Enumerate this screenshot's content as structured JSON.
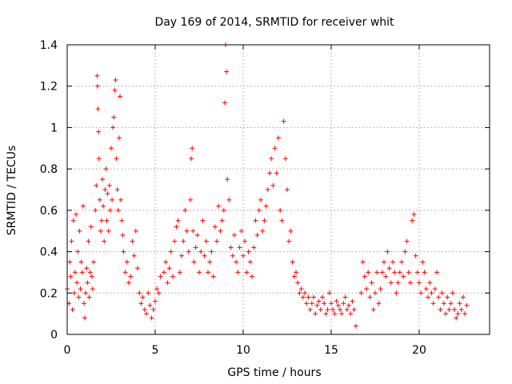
{
  "chart_data": {
    "type": "scatter",
    "title": "Day 169 of 2014, SRMTID for receiver whit",
    "xlabel": "GPS time / hours",
    "ylabel": "SRMTID / TECUs",
    "xlim": [
      0,
      24
    ],
    "ylim": [
      0,
      1.4
    ],
    "x_ticks": [
      0,
      5,
      10,
      15,
      20
    ],
    "x_tick_labels": [
      "0",
      "5",
      "10",
      "15",
      "20"
    ],
    "y_ticks": [
      0,
      0.2,
      0.4,
      0.6,
      0.8,
      1.0,
      1.2,
      1.4
    ],
    "y_tick_labels": [
      "0",
      "0.2",
      "0.4",
      "0.6",
      "0.8",
      "1",
      "1.2",
      "1.4"
    ],
    "grid": true,
    "marker": "+",
    "color": "#ff0000",
    "series": [
      {
        "name": "SRMTID",
        "points": [
          [
            0.0,
            0.22
          ],
          [
            0.1,
            0.15
          ],
          [
            0.15,
            0.35
          ],
          [
            0.2,
            0.28
          ],
          [
            0.25,
            0.45
          ],
          [
            0.3,
            0.12
          ],
          [
            0.35,
            0.55
          ],
          [
            0.4,
            0.2
          ],
          [
            0.45,
            0.3
          ],
          [
            0.5,
            0.58
          ],
          [
            0.55,
            0.25
          ],
          [
            0.6,
            0.4
          ],
          [
            0.65,
            0.18
          ],
          [
            0.7,
            0.5
          ],
          [
            0.75,
            0.22
          ],
          [
            0.8,
            0.35
          ],
          [
            0.85,
            0.3
          ],
          [
            0.9,
            0.62
          ],
          [
            0.95,
            0.15
          ],
          [
            1.0,
            0.08
          ],
          [
            1.05,
            0.2
          ],
          [
            1.1,
            0.32
          ],
          [
            1.15,
            0.25
          ],
          [
            1.2,
            0.45
          ],
          [
            1.25,
            0.18
          ],
          [
            1.3,
            0.3
          ],
          [
            1.35,
            0.52
          ],
          [
            1.4,
            0.28
          ],
          [
            1.45,
            0.22
          ],
          [
            1.5,
            0.35
          ],
          [
            1.6,
            0.6
          ],
          [
            1.65,
            0.72
          ],
          [
            1.7,
            1.25
          ],
          [
            1.72,
            1.2
          ],
          [
            1.75,
            1.09
          ],
          [
            1.78,
            0.98
          ],
          [
            1.8,
            0.85
          ],
          [
            1.85,
            0.65
          ],
          [
            1.9,
            0.5
          ],
          [
            1.95,
            0.55
          ],
          [
            2.0,
            0.75
          ],
          [
            2.05,
            0.62
          ],
          [
            2.1,
            0.45
          ],
          [
            2.15,
            0.7
          ],
          [
            2.2,
            0.8
          ],
          [
            2.25,
            0.55
          ],
          [
            2.3,
            0.68
          ],
          [
            2.35,
            0.5
          ],
          [
            2.4,
            0.72
          ],
          [
            2.45,
            0.6
          ],
          [
            2.5,
            0.9
          ],
          [
            2.55,
            0.65
          ],
          [
            2.6,
            1.0
          ],
          [
            2.65,
            1.05
          ],
          [
            2.7,
            1.18
          ],
          [
            2.75,
            1.23
          ],
          [
            2.8,
            0.85
          ],
          [
            2.85,
            0.7
          ],
          [
            2.9,
            0.6
          ],
          [
            2.95,
            0.95
          ],
          [
            3.0,
            1.15
          ],
          [
            3.05,
            0.65
          ],
          [
            3.1,
            0.55
          ],
          [
            3.15,
            0.48
          ],
          [
            3.2,
            0.4
          ],
          [
            3.3,
            0.3
          ],
          [
            3.4,
            0.35
          ],
          [
            3.5,
            0.25
          ],
          [
            3.6,
            0.28
          ],
          [
            3.7,
            0.45
          ],
          [
            3.8,
            0.38
          ],
          [
            3.9,
            0.5
          ],
          [
            4.0,
            0.32
          ],
          [
            4.1,
            0.2
          ],
          [
            4.2,
            0.15
          ],
          [
            4.3,
            0.18
          ],
          [
            4.4,
            0.12
          ],
          [
            4.5,
            0.1
          ],
          [
            4.6,
            0.2
          ],
          [
            4.7,
            0.14
          ],
          [
            4.8,
            0.08
          ],
          [
            4.9,
            0.12
          ],
          [
            5.0,
            0.16
          ],
          [
            5.1,
            0.22
          ],
          [
            5.2,
            0.2
          ],
          [
            5.3,
            0.28
          ],
          [
            5.5,
            0.3
          ],
          [
            5.6,
            0.35
          ],
          [
            5.7,
            0.25
          ],
          [
            5.8,
            0.32
          ],
          [
            5.9,
            0.4
          ],
          [
            6.0,
            0.28
          ],
          [
            6.1,
            0.45
          ],
          [
            6.2,
            0.52
          ],
          [
            6.3,
            0.55
          ],
          [
            6.4,
            0.3
          ],
          [
            6.5,
            0.38
          ],
          [
            6.6,
            0.45
          ],
          [
            6.7,
            0.6
          ],
          [
            6.8,
            0.5
          ],
          [
            6.9,
            0.4
          ],
          [
            7.0,
            0.65
          ],
          [
            7.05,
            0.85
          ],
          [
            7.1,
            0.9
          ],
          [
            7.15,
            0.5
          ],
          [
            7.2,
            0.35
          ],
          [
            7.3,
            0.42
          ],
          [
            7.4,
            0.48
          ],
          [
            7.5,
            0.3
          ],
          [
            7.6,
            0.4
          ],
          [
            7.7,
            0.55
          ],
          [
            7.8,
            0.38
          ],
          [
            7.9,
            0.45
          ],
          [
            8.0,
            0.3
          ],
          [
            8.1,
            0.35
          ],
          [
            8.2,
            0.4
          ],
          [
            8.3,
            0.28
          ],
          [
            8.4,
            0.52
          ],
          [
            8.5,
            0.45
          ],
          [
            8.6,
            0.62
          ],
          [
            8.7,
            0.5
          ],
          [
            8.8,
            0.55
          ],
          [
            8.9,
            0.6
          ],
          [
            8.95,
            1.12
          ],
          [
            9.0,
            1.4
          ],
          [
            9.05,
            1.27
          ],
          [
            9.1,
            0.75
          ],
          [
            9.2,
            0.65
          ],
          [
            9.3,
            0.42
          ],
          [
            9.4,
            0.38
          ],
          [
            9.5,
            0.48
          ],
          [
            9.6,
            0.35
          ],
          [
            9.7,
            0.3
          ],
          [
            9.8,
            0.42
          ],
          [
            9.9,
            0.5
          ],
          [
            10.0,
            0.38
          ],
          [
            10.1,
            0.45
          ],
          [
            10.2,
            0.3
          ],
          [
            10.3,
            0.4
          ],
          [
            10.4,
            0.35
          ],
          [
            10.5,
            0.28
          ],
          [
            10.6,
            0.42
          ],
          [
            10.7,
            0.55
          ],
          [
            10.8,
            0.48
          ],
          [
            10.9,
            0.6
          ],
          [
            11.0,
            0.65
          ],
          [
            11.1,
            0.5
          ],
          [
            11.2,
            0.55
          ],
          [
            11.3,
            0.62
          ],
          [
            11.4,
            0.7
          ],
          [
            11.5,
            0.78
          ],
          [
            11.6,
            0.85
          ],
          [
            11.7,
            0.72
          ],
          [
            11.8,
            0.9
          ],
          [
            11.9,
            0.78
          ],
          [
            12.0,
            0.95
          ],
          [
            12.1,
            0.6
          ],
          [
            12.2,
            0.55
          ],
          [
            12.3,
            1.03
          ],
          [
            12.4,
            0.85
          ],
          [
            12.5,
            0.7
          ],
          [
            12.6,
            0.45
          ],
          [
            12.7,
            0.5
          ],
          [
            12.8,
            0.35
          ],
          [
            12.9,
            0.28
          ],
          [
            13.0,
            0.3
          ],
          [
            13.1,
            0.25
          ],
          [
            13.2,
            0.2
          ],
          [
            13.3,
            0.22
          ],
          [
            13.4,
            0.18
          ],
          [
            13.5,
            0.2
          ],
          [
            13.6,
            0.15
          ],
          [
            13.7,
            0.18
          ],
          [
            13.8,
            0.12
          ],
          [
            13.9,
            0.15
          ],
          [
            14.0,
            0.18
          ],
          [
            14.1,
            0.1
          ],
          [
            14.2,
            0.14
          ],
          [
            14.3,
            0.16
          ],
          [
            14.4,
            0.12
          ],
          [
            14.5,
            0.18
          ],
          [
            14.6,
            0.15
          ],
          [
            14.7,
            0.1
          ],
          [
            14.8,
            0.12
          ],
          [
            14.9,
            0.2
          ],
          [
            15.0,
            0.15
          ],
          [
            15.1,
            0.12
          ],
          [
            15.2,
            0.1
          ],
          [
            15.3,
            0.16
          ],
          [
            15.4,
            0.14
          ],
          [
            15.5,
            0.12
          ],
          [
            15.6,
            0.1
          ],
          [
            15.7,
            0.15
          ],
          [
            15.8,
            0.18
          ],
          [
            15.9,
            0.12
          ],
          [
            16.0,
            0.14
          ],
          [
            16.1,
            0.1
          ],
          [
            16.2,
            0.16
          ],
          [
            16.3,
            0.12
          ],
          [
            16.4,
            0.04
          ],
          [
            16.7,
            0.2
          ],
          [
            16.8,
            0.35
          ],
          [
            16.9,
            0.28
          ],
          [
            17.0,
            0.22
          ],
          [
            17.1,
            0.3
          ],
          [
            17.2,
            0.18
          ],
          [
            17.3,
            0.25
          ],
          [
            17.4,
            0.12
          ],
          [
            17.5,
            0.2
          ],
          [
            17.6,
            0.3
          ],
          [
            17.7,
            0.15
          ],
          [
            17.8,
            0.22
          ],
          [
            17.9,
            0.3
          ],
          [
            18.0,
            0.35
          ],
          [
            18.1,
            0.28
          ],
          [
            18.2,
            0.4
          ],
          [
            18.3,
            0.32
          ],
          [
            18.4,
            0.25
          ],
          [
            18.5,
            0.35
          ],
          [
            18.6,
            0.3
          ],
          [
            18.7,
            0.2
          ],
          [
            18.8,
            0.25
          ],
          [
            18.9,
            0.3
          ],
          [
            19.0,
            0.35
          ],
          [
            19.1,
            0.28
          ],
          [
            19.2,
            0.4
          ],
          [
            19.3,
            0.45
          ],
          [
            19.4,
            0.3
          ],
          [
            19.5,
            0.25
          ],
          [
            19.6,
            0.55
          ],
          [
            19.7,
            0.58
          ],
          [
            19.8,
            0.38
          ],
          [
            19.9,
            0.3
          ],
          [
            20.0,
            0.25
          ],
          [
            20.1,
            0.2
          ],
          [
            20.2,
            0.35
          ],
          [
            20.3,
            0.3
          ],
          [
            20.4,
            0.22
          ],
          [
            20.5,
            0.18
          ],
          [
            20.6,
            0.25
          ],
          [
            20.7,
            0.2
          ],
          [
            20.8,
            0.15
          ],
          [
            20.9,
            0.22
          ],
          [
            21.0,
            0.3
          ],
          [
            21.1,
            0.18
          ],
          [
            21.2,
            0.12
          ],
          [
            21.3,
            0.2
          ],
          [
            21.4,
            0.15
          ],
          [
            21.5,
            0.1
          ],
          [
            21.6,
            0.18
          ],
          [
            21.7,
            0.12
          ],
          [
            21.8,
            0.15
          ],
          [
            21.9,
            0.2
          ],
          [
            22.0,
            0.12
          ],
          [
            22.1,
            0.08
          ],
          [
            22.2,
            0.1
          ],
          [
            22.3,
            0.15
          ],
          [
            22.4,
            0.12
          ],
          [
            22.5,
            0.18
          ],
          [
            22.6,
            0.1
          ],
          [
            22.7,
            0.14
          ]
        ]
      }
    ]
  }
}
